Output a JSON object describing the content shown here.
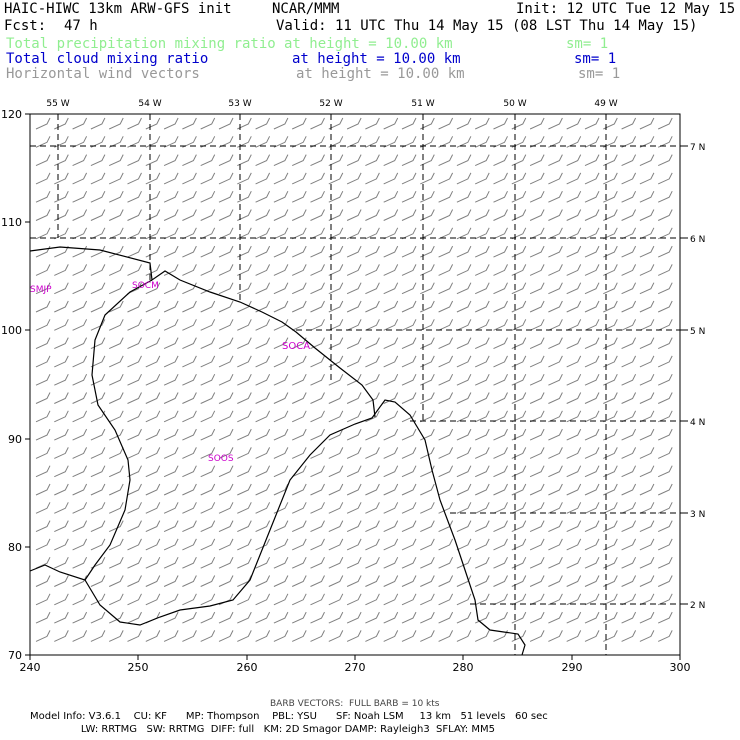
{
  "header": {
    "title": "HAIC-HIWC 13km ARW-GFS init",
    "center": "NCAR/MMM",
    "init": "Init: 12 UTC Tue 12 May 15",
    "fcst_label": "Fcst:",
    "fcst_value": "47 h",
    "valid": "Valid: 11 UTC Thu 14 May 15 (08 LST Thu 14 May 15)"
  },
  "fields": [
    {
      "name": "Total precipitation mixing ratio",
      "height": "at height = 10.00 km",
      "sm": "sm= 1",
      "color": "#90ee90"
    },
    {
      "name": "Total cloud mixing ratio",
      "height": "at height = 10.00 km",
      "sm": "sm= 1",
      "color": "#0000cc"
    },
    {
      "name": "Horizontal wind vectors",
      "height": "at height = 10.00 km",
      "sm": "sm= 1",
      "color": "#999999"
    }
  ],
  "map": {
    "x_ticks": [
      "240",
      "250",
      "260",
      "270",
      "280",
      "290",
      "300"
    ],
    "y_ticks": [
      "120",
      "110",
      "100",
      "90",
      "80",
      "70"
    ],
    "lon_labels": [
      "55 W",
      "54 W",
      "53 W",
      "52 W",
      "51 W",
      "50 W",
      "49 W"
    ],
    "lat_labels": [
      "7 N",
      "6 N",
      "5 N",
      "4 N",
      "3 N",
      "2 N"
    ],
    "stations": [
      {
        "id": "SMJP",
        "color": "#cc00cc"
      },
      {
        "id": "SOCM",
        "color": "#cc00cc"
      },
      {
        "id": "SOCA",
        "color": "#cc00cc"
      },
      {
        "id": "SOOS",
        "color": "#cc00cc"
      }
    ],
    "barb_color": "#808080"
  },
  "footer": {
    "barb_note": "BARB VECTORS:  FULL BARB = 10 kts",
    "line1": "Model Info: V3.6.1    CU: KF      MP: Thompson    PBL: YSU      SF: Noah LSM     13 km   51 levels   60 sec",
    "line2": "                LW: RRTMG   SW: RRTMG  DIFF: full   KM: 2D Smagor DAMP: Rayleigh3  SFLAY: MM5"
  }
}
